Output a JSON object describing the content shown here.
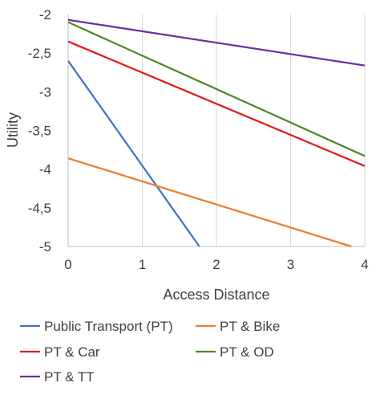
{
  "chart_data": {
    "type": "line",
    "title": "",
    "xlabel": "Access Distance",
    "ylabel": "Utility",
    "xlim": [
      0,
      4
    ],
    "ylim": [
      -5,
      -2
    ],
    "x_ticks": [
      "0",
      "1",
      "2",
      "3",
      "4"
    ],
    "y_ticks": [
      "-2",
      "-2,5",
      "-3",
      "-3,5",
      "-4",
      "-4,5",
      "-5"
    ],
    "grid": "vertical",
    "legend_position": "bottom",
    "series": [
      {
        "name": "Public Transport (PT)",
        "color": "#4472C4",
        "x": [
          0,
          1.77
        ],
        "y": [
          -2.6,
          -5.0
        ]
      },
      {
        "name": "PT & Bike",
        "color": "#ED7D31",
        "x": [
          0,
          3.82
        ],
        "y": [
          -3.86,
          -5.0
        ]
      },
      {
        "name": "PT & Car",
        "color": "#E01B1B",
        "x": [
          0,
          4
        ],
        "y": [
          -2.35,
          -3.96
        ]
      },
      {
        "name": "PT & OD",
        "color": "#4E8A25",
        "x": [
          0,
          4
        ],
        "y": [
          -2.1,
          -3.83
        ]
      },
      {
        "name": "PT & TT",
        "color": "#7030A0",
        "x": [
          0,
          4
        ],
        "y": [
          -2.07,
          -2.66
        ]
      }
    ]
  }
}
